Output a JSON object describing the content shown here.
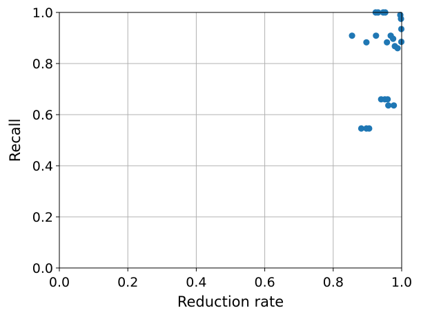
{
  "chart_data": {
    "type": "scatter",
    "title": "",
    "xlabel": "Reduction rate",
    "ylabel": "Recall",
    "xlim": [
      0.0,
      1.0
    ],
    "ylim": [
      0.0,
      1.0
    ],
    "xticks": [
      "0.0",
      "0.2",
      "0.4",
      "0.6",
      "0.8",
      "1.0"
    ],
    "yticks": [
      "0.0",
      "0.2",
      "0.4",
      "0.6",
      "0.8",
      "1.0"
    ],
    "grid": true,
    "marker_color": "#1f77b4",
    "series": [
      {
        "points": [
          [
            0.855,
            0.909
          ],
          [
            0.897,
            0.883
          ],
          [
            0.925,
            0.909
          ],
          [
            0.924,
            1.0
          ],
          [
            0.931,
            1.0
          ],
          [
            0.946,
            1.0
          ],
          [
            0.952,
            1.0
          ],
          [
            0.957,
            0.883
          ],
          [
            0.968,
            0.909
          ],
          [
            0.975,
            0.897
          ],
          [
            0.98,
            0.868
          ],
          [
            0.988,
            0.86
          ],
          [
            0.996,
            0.99
          ],
          [
            0.998,
            0.975
          ],
          [
            0.999,
            0.935
          ],
          [
            0.999,
            0.885
          ],
          [
            0.94,
            0.66
          ],
          [
            0.951,
            0.66
          ],
          [
            0.959,
            0.66
          ],
          [
            0.961,
            0.636
          ],
          [
            0.977,
            0.636
          ],
          [
            0.882,
            0.546
          ],
          [
            0.897,
            0.546
          ],
          [
            0.905,
            0.546
          ]
        ]
      }
    ]
  }
}
